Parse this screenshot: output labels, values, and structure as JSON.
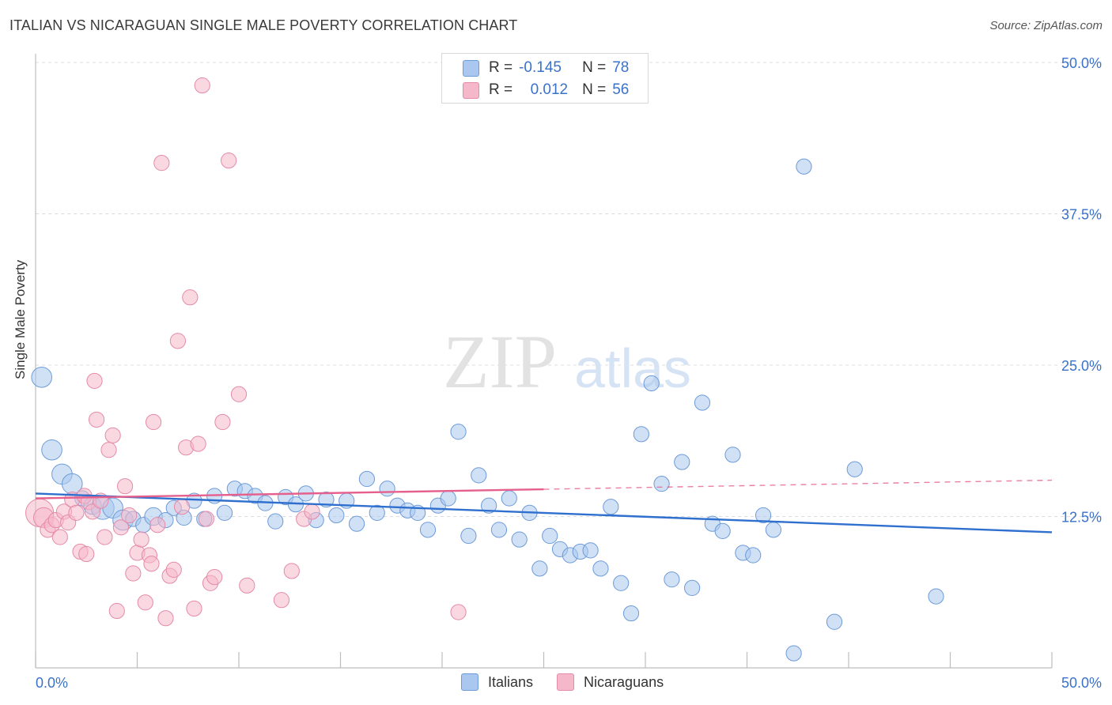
{
  "title": "ITALIAN VS NICARAGUAN SINGLE MALE POVERTY CORRELATION CHART",
  "source": "Source: ZipAtlas.com",
  "watermark": {
    "zip": "ZIP",
    "atlas": "atlas"
  },
  "legend": {
    "rows": [
      {
        "r_label": "R =",
        "r_value": "-0.145",
        "n_label": "N =",
        "n_value": "78"
      },
      {
        "r_label": "R =",
        "r_value": "0.012",
        "n_label": "N =",
        "n_value": "56"
      }
    ]
  },
  "colors": {
    "italians_fill": "#aac8ef",
    "italians_stroke": "#6d9bd8",
    "italians_line": "#2f6fce",
    "nicaraguans_fill": "#f5b8cb",
    "nicaraguans_stroke": "#e58aa8",
    "nicaraguans_line": "#e5608c",
    "axis_text": "#3a72c9",
    "grid": "#dcdcdc"
  },
  "chart_data": {
    "type": "scatter",
    "ylabel": "Single Male Poverty",
    "x_tick_labels": [
      "0.0%",
      "50.0%"
    ],
    "y_tick_labels": [
      "12.5%",
      "25.0%",
      "37.5%",
      "50.0%"
    ],
    "xlim": [
      0,
      50
    ],
    "ylim": [
      0,
      50
    ],
    "grid": true,
    "legend_position": "bottom",
    "series": [
      {
        "name": "Italians",
        "trend": {
          "x": [
            0,
            50
          ],
          "y": [
            14.4,
            11.2
          ],
          "dashed_from": null
        },
        "points": [
          [
            0.3,
            24.0,
            1.6
          ],
          [
            0.8,
            18.0,
            1.6
          ],
          [
            1.3,
            16.0,
            1.6
          ],
          [
            1.8,
            15.2,
            1.6
          ],
          [
            2.3,
            14.0,
            1.2
          ],
          [
            2.8,
            13.4,
            1.4
          ],
          [
            3.3,
            13.2,
            1.8
          ],
          [
            3.8,
            13.2,
            1.6
          ],
          [
            4.3,
            12.2,
            1.6
          ],
          [
            4.8,
            12.3,
            1.2
          ],
          [
            5.3,
            11.8,
            1.2
          ],
          [
            5.8,
            12.5,
            1.4
          ],
          [
            6.4,
            12.2,
            1.2
          ],
          [
            6.8,
            13.2,
            1.2
          ],
          [
            7.3,
            12.4,
            1.2
          ],
          [
            7.8,
            13.8,
            1.2
          ],
          [
            8.3,
            12.3,
            1.2
          ],
          [
            8.8,
            14.2,
            1.2
          ],
          [
            9.3,
            12.8,
            1.2
          ],
          [
            9.8,
            14.8,
            1.2
          ],
          [
            10.3,
            14.6,
            1.2
          ],
          [
            10.8,
            14.2,
            1.2
          ],
          [
            11.3,
            13.6,
            1.2
          ],
          [
            11.8,
            12.1,
            1.2
          ],
          [
            12.3,
            14.1,
            1.2
          ],
          [
            12.8,
            13.5,
            1.2
          ],
          [
            13.3,
            14.4,
            1.2
          ],
          [
            13.8,
            12.2,
            1.2
          ],
          [
            14.3,
            13.9,
            1.2
          ],
          [
            14.8,
            12.6,
            1.2
          ],
          [
            15.3,
            13.8,
            1.2
          ],
          [
            15.8,
            11.9,
            1.2
          ],
          [
            16.3,
            15.6,
            1.2
          ],
          [
            16.8,
            12.8,
            1.2
          ],
          [
            17.3,
            14.8,
            1.2
          ],
          [
            17.8,
            13.4,
            1.2
          ],
          [
            18.3,
            13.0,
            1.2
          ],
          [
            18.8,
            12.8,
            1.2
          ],
          [
            19.3,
            11.4,
            1.2
          ],
          [
            19.8,
            13.4,
            1.2
          ],
          [
            20.3,
            14.0,
            1.2
          ],
          [
            20.8,
            19.5,
            1.2
          ],
          [
            21.3,
            10.9,
            1.2
          ],
          [
            21.8,
            15.9,
            1.2
          ],
          [
            22.3,
            13.4,
            1.2
          ],
          [
            22.8,
            11.4,
            1.2
          ],
          [
            23.3,
            14.0,
            1.2
          ],
          [
            23.8,
            10.6,
            1.2
          ],
          [
            24.3,
            12.8,
            1.2
          ],
          [
            24.8,
            8.2,
            1.2
          ],
          [
            25.3,
            10.9,
            1.2
          ],
          [
            25.8,
            9.8,
            1.2
          ],
          [
            26.3,
            9.3,
            1.2
          ],
          [
            26.8,
            9.6,
            1.2
          ],
          [
            27.3,
            9.7,
            1.2
          ],
          [
            27.8,
            8.2,
            1.2
          ],
          [
            28.3,
            13.3,
            1.2
          ],
          [
            28.8,
            7.0,
            1.2
          ],
          [
            29.3,
            4.5,
            1.2
          ],
          [
            29.8,
            19.3,
            1.2
          ],
          [
            30.3,
            23.5,
            1.2
          ],
          [
            30.8,
            15.2,
            1.2
          ],
          [
            31.3,
            7.3,
            1.2
          ],
          [
            31.8,
            17.0,
            1.2
          ],
          [
            32.3,
            6.6,
            1.2
          ],
          [
            32.8,
            21.9,
            1.2
          ],
          [
            33.3,
            11.9,
            1.2
          ],
          [
            33.8,
            11.3,
            1.2
          ],
          [
            34.3,
            17.6,
            1.2
          ],
          [
            34.8,
            9.5,
            1.2
          ],
          [
            35.3,
            9.3,
            1.2
          ],
          [
            35.8,
            12.6,
            1.2
          ],
          [
            36.3,
            11.4,
            1.2
          ],
          [
            37.3,
            1.2,
            1.2
          ],
          [
            37.8,
            41.4,
            1.2
          ],
          [
            39.3,
            3.8,
            1.2
          ],
          [
            40.3,
            16.4,
            1.2
          ],
          [
            44.3,
            5.9,
            1.2
          ]
        ]
      },
      {
        "name": "Nicaraguans",
        "trend": {
          "x": [
            0,
            50
          ],
          "y": [
            14.0,
            15.5
          ],
          "dashed_from": 25
        },
        "points": [
          [
            0.2,
            12.8,
            2.2
          ],
          [
            0.4,
            12.4,
            1.6
          ],
          [
            0.6,
            11.4,
            1.2
          ],
          [
            0.8,
            11.8,
            1.2
          ],
          [
            1.0,
            12.2,
            1.2
          ],
          [
            1.2,
            10.8,
            1.2
          ],
          [
            1.4,
            12.9,
            1.2
          ],
          [
            1.6,
            12.0,
            1.2
          ],
          [
            1.8,
            13.9,
            1.2
          ],
          [
            2.0,
            12.8,
            1.2
          ],
          [
            2.2,
            9.6,
            1.2
          ],
          [
            2.4,
            14.2,
            1.2
          ],
          [
            2.6,
            13.7,
            1.2
          ],
          [
            2.8,
            12.9,
            1.2
          ],
          [
            3.0,
            20.5,
            1.2
          ],
          [
            3.2,
            13.8,
            1.2
          ],
          [
            3.4,
            10.8,
            1.2
          ],
          [
            3.6,
            18.0,
            1.2
          ],
          [
            3.8,
            19.2,
            1.2
          ],
          [
            4.0,
            4.7,
            1.2
          ],
          [
            4.2,
            11.6,
            1.2
          ],
          [
            4.4,
            15.0,
            1.2
          ],
          [
            4.6,
            12.6,
            1.2
          ],
          [
            4.8,
            7.8,
            1.2
          ],
          [
            5.0,
            9.5,
            1.2
          ],
          [
            5.2,
            10.6,
            1.2
          ],
          [
            5.4,
            5.4,
            1.2
          ],
          [
            5.6,
            9.3,
            1.2
          ],
          [
            5.8,
            20.3,
            1.2
          ],
          [
            6.0,
            11.8,
            1.2
          ],
          [
            6.2,
            41.7,
            1.2
          ],
          [
            6.4,
            4.1,
            1.2
          ],
          [
            6.6,
            7.6,
            1.2
          ],
          [
            6.8,
            8.1,
            1.2
          ],
          [
            7.0,
            27.0,
            1.2
          ],
          [
            7.2,
            13.3,
            1.2
          ],
          [
            7.4,
            18.2,
            1.2
          ],
          [
            7.6,
            30.6,
            1.2
          ],
          [
            7.8,
            4.9,
            1.2
          ],
          [
            8.0,
            18.5,
            1.2
          ],
          [
            8.2,
            48.1,
            1.2
          ],
          [
            8.4,
            12.3,
            1.2
          ],
          [
            8.6,
            7.0,
            1.2
          ],
          [
            8.8,
            7.5,
            1.2
          ],
          [
            9.2,
            20.3,
            1.2
          ],
          [
            9.5,
            41.9,
            1.2
          ],
          [
            10.0,
            22.6,
            1.2
          ],
          [
            10.4,
            6.8,
            1.2
          ],
          [
            12.1,
            5.6,
            1.2
          ],
          [
            12.6,
            8.0,
            1.2
          ],
          [
            13.2,
            12.3,
            1.2
          ],
          [
            13.6,
            12.9,
            1.2
          ],
          [
            20.8,
            4.6,
            1.2
          ],
          [
            2.9,
            23.7,
            1.2
          ],
          [
            2.5,
            9.4,
            1.2
          ],
          [
            5.7,
            8.6,
            1.2
          ]
        ]
      }
    ]
  }
}
